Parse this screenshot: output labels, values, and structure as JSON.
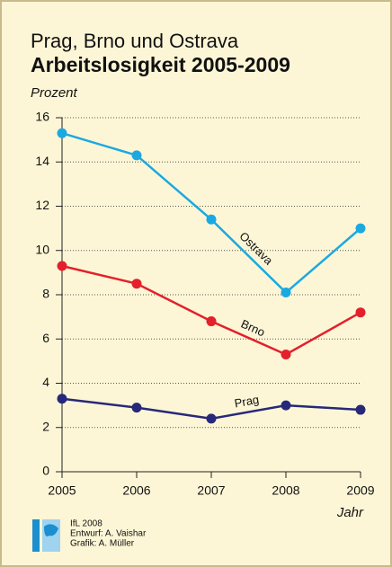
{
  "chart_data": {
    "type": "line",
    "title": "Prag, Brno und Ostrava",
    "subtitle": "Arbeitslosigkeit 2005-2009",
    "y_label": "Prozent",
    "x_label": "Jahr",
    "x": [
      2005,
      2006,
      2007,
      2008,
      2009
    ],
    "xlim": [
      2005,
      2009
    ],
    "xticks": [
      2005,
      2006,
      2007,
      2008,
      2009
    ],
    "ylim": [
      0,
      16
    ],
    "yticks": [
      0,
      2,
      4,
      6,
      8,
      10,
      12,
      14,
      16
    ],
    "grid": true,
    "series": [
      {
        "name": "Ostrava",
        "color": "#1ba9e1",
        "values": [
          15.3,
          14.3,
          11.4,
          8.1,
          11.0
        ]
      },
      {
        "name": "Brno",
        "color": "#e3202c",
        "values": [
          9.3,
          8.5,
          6.8,
          5.3,
          7.2
        ]
      },
      {
        "name": "Prag",
        "color": "#27287a",
        "values": [
          3.3,
          2.9,
          2.4,
          3.0,
          2.8
        ]
      }
    ],
    "credits": [
      "IfL 2008",
      "Entwurf: A. Vaishar",
      "Grafik: A. Müller"
    ]
  }
}
